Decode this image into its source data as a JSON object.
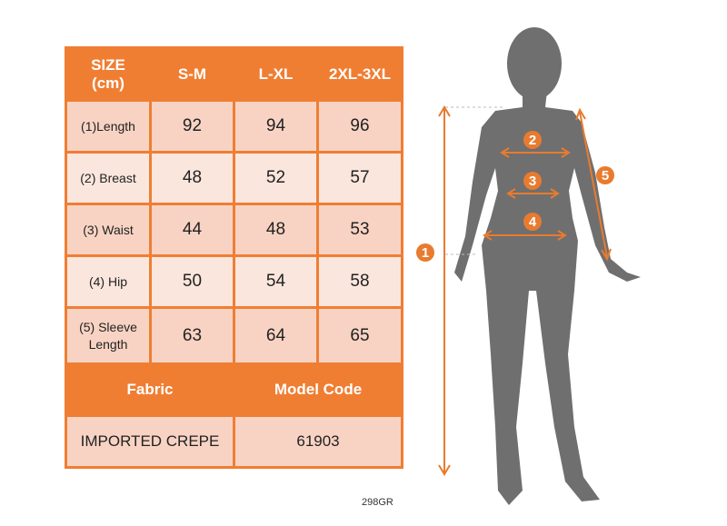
{
  "table": {
    "header": [
      "SIZE\n(cm)",
      "S-M",
      "L-XL",
      "2XL-3XL"
    ],
    "header_line1": "SIZE",
    "header_line2": "(cm)",
    "rows": [
      {
        "label": "(1)Length",
        "values": [
          "92",
          "94",
          "96"
        ]
      },
      {
        "label": "(2) Breast",
        "values": [
          "48",
          "52",
          "57"
        ]
      },
      {
        "label": "(3) Waist",
        "values": [
          "44",
          "48",
          "53"
        ]
      },
      {
        "label": "(4) Hip",
        "values": [
          "50",
          "54",
          "58"
        ]
      },
      {
        "label_line1": "(5) Sleeve",
        "label_line2": "Length",
        "values": [
          "63",
          "64",
          "65"
        ]
      }
    ],
    "fabric_label": "Fabric",
    "model_code_label": "Model Code",
    "fabric_value": "IMPORTED CREPE",
    "model_code_value": "61903"
  },
  "note": "298GR",
  "figure": {
    "markers": [
      "1",
      "2",
      "3",
      "4",
      "5"
    ],
    "accent_color": "#e87b2f",
    "silhouette_color": "#6f6f6f"
  }
}
